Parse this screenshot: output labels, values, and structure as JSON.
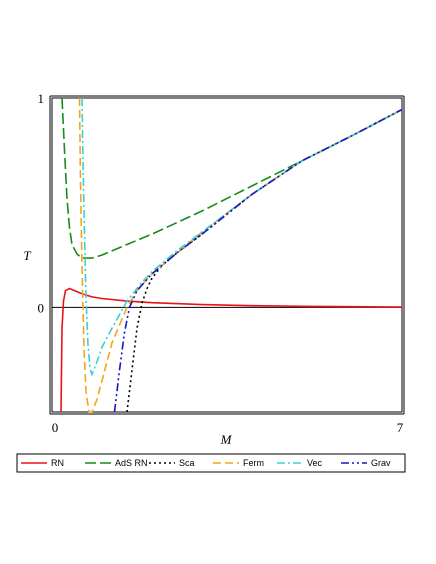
{
  "chart_data": {
    "type": "line",
    "xlabel": "M",
    "ylabel": "T",
    "xlim": [
      0,
      7
    ],
    "ylim": [
      -0.5,
      1
    ],
    "x_ticks": [
      "0",
      "7"
    ],
    "y_ticks": [
      "0",
      "1"
    ],
    "grid": false,
    "legend_position": "bottom",
    "series": [
      {
        "name": "RN",
        "color": "#e8121a",
        "dash": "solid",
        "points": [
          [
            0.18,
            -0.5
          ],
          [
            0.2,
            -0.1
          ],
          [
            0.23,
            0.03
          ],
          [
            0.27,
            0.08
          ],
          [
            0.35,
            0.09
          ],
          [
            0.45,
            0.08
          ],
          [
            0.6,
            0.065
          ],
          [
            0.8,
            0.05
          ],
          [
            1.0,
            0.042
          ],
          [
            1.5,
            0.03
          ],
          [
            2.0,
            0.022
          ],
          [
            3.0,
            0.013
          ],
          [
            4.0,
            0.008
          ],
          [
            5.0,
            0.005
          ],
          [
            6.0,
            0.003
          ],
          [
            7.0,
            0.001
          ]
        ]
      },
      {
        "name": "AdS RN",
        "color": "#1a8a1a",
        "dash": "longdash",
        "points": [
          [
            0.2,
            1.0
          ],
          [
            0.25,
            0.75
          ],
          [
            0.3,
            0.52
          ],
          [
            0.35,
            0.38
          ],
          [
            0.4,
            0.3
          ],
          [
            0.5,
            0.255
          ],
          [
            0.6,
            0.235
          ],
          [
            0.8,
            0.235
          ],
          [
            1.0,
            0.25
          ],
          [
            1.5,
            0.3
          ],
          [
            2.0,
            0.35
          ],
          [
            3.0,
            0.46
          ],
          [
            4.0,
            0.58
          ],
          [
            5.0,
            0.7
          ],
          [
            6.0,
            0.82
          ],
          [
            7.0,
            0.945
          ]
        ]
      },
      {
        "name": "Sca",
        "color": "#000000",
        "dash": "dotted",
        "points": [
          [
            1.5,
            -0.5
          ],
          [
            1.6,
            -0.3
          ],
          [
            1.7,
            -0.1
          ],
          [
            1.8,
            0.02
          ],
          [
            1.9,
            0.09
          ],
          [
            2.0,
            0.14
          ],
          [
            2.2,
            0.2
          ],
          [
            2.5,
            0.26
          ],
          [
            3.0,
            0.35
          ],
          [
            4.0,
            0.54
          ],
          [
            5.0,
            0.7
          ],
          [
            6.0,
            0.82
          ],
          [
            7.0,
            0.945
          ]
        ]
      },
      {
        "name": "Ferm",
        "color": "#f2a51a",
        "dash": "dashed",
        "points": [
          [
            0.55,
            1.0
          ],
          [
            0.57,
            0.6
          ],
          [
            0.6,
            0.2
          ],
          [
            0.64,
            -0.2
          ],
          [
            0.68,
            -0.4
          ],
          [
            0.74,
            -0.5
          ],
          [
            0.8,
            -0.5
          ],
          [
            0.9,
            -0.44
          ],
          [
            1.0,
            -0.35
          ],
          [
            1.2,
            -0.17
          ],
          [
            1.5,
            0.0
          ],
          [
            1.7,
            0.08
          ],
          [
            2.0,
            0.16
          ],
          [
            2.5,
            0.26
          ],
          [
            3.0,
            0.36
          ],
          [
            4.0,
            0.54
          ],
          [
            5.0,
            0.7
          ],
          [
            6.0,
            0.82
          ],
          [
            7.0,
            0.945
          ]
        ]
      },
      {
        "name": "Vec",
        "color": "#3ad0d0",
        "dash": "dashdot",
        "points": [
          [
            0.6,
            1.0
          ],
          [
            0.62,
            0.7
          ],
          [
            0.65,
            0.35
          ],
          [
            0.68,
            0.05
          ],
          [
            0.72,
            -0.18
          ],
          [
            0.76,
            -0.29
          ],
          [
            0.8,
            -0.32
          ],
          [
            0.9,
            -0.26
          ],
          [
            1.0,
            -0.19
          ],
          [
            1.2,
            -0.1
          ],
          [
            1.5,
            0.03
          ],
          [
            1.8,
            0.12
          ],
          [
            2.0,
            0.17
          ],
          [
            2.5,
            0.27
          ],
          [
            3.0,
            0.36
          ],
          [
            4.0,
            0.54
          ],
          [
            5.0,
            0.7
          ],
          [
            6.0,
            0.82
          ],
          [
            7.0,
            0.945
          ]
        ]
      },
      {
        "name": "Grav",
        "color": "#1616c8",
        "dash": "dashdotdot",
        "points": [
          [
            1.25,
            -0.5
          ],
          [
            1.35,
            -0.3
          ],
          [
            1.45,
            -0.12
          ],
          [
            1.55,
            0.0
          ],
          [
            1.7,
            0.08
          ],
          [
            2.0,
            0.16
          ],
          [
            2.5,
            0.26
          ],
          [
            3.0,
            0.35
          ],
          [
            4.0,
            0.54
          ],
          [
            5.0,
            0.7
          ],
          [
            6.0,
            0.82
          ],
          [
            7.0,
            0.945
          ]
        ]
      }
    ]
  }
}
